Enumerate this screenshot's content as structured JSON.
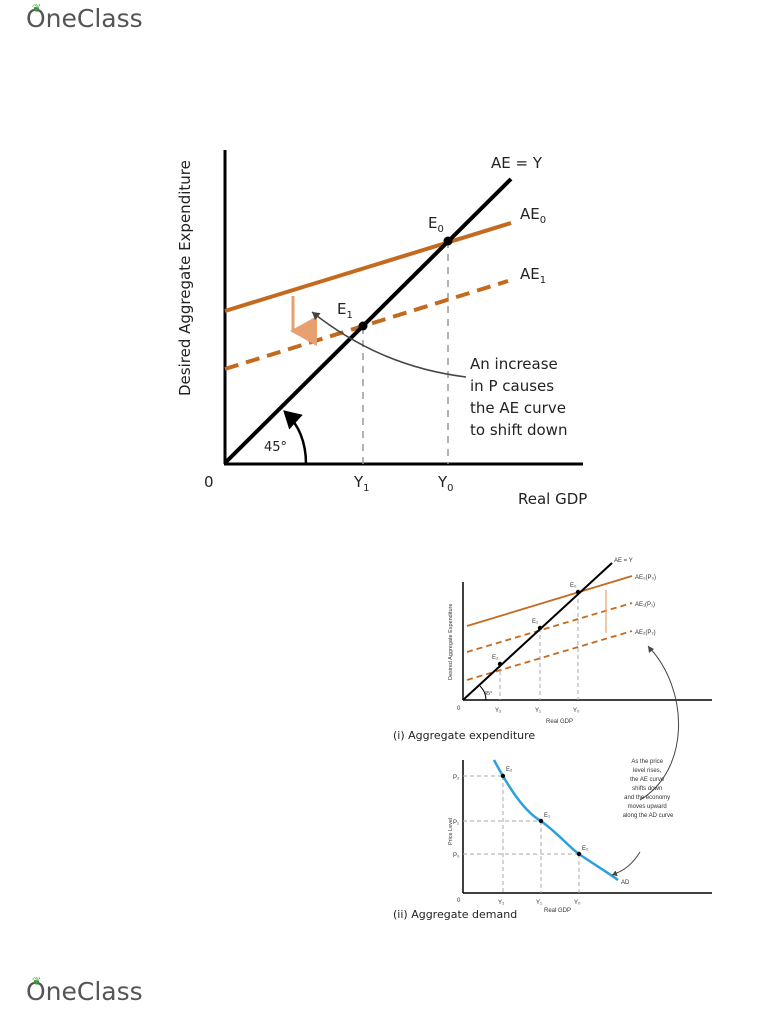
{
  "brand": {
    "name": "OneClass",
    "leaf_color": "#3a9a3a"
  },
  "colors": {
    "ae_line": "#c46a1e",
    "shift_arrow": "#e8a070",
    "ad_curve": "#2b9fe0",
    "axis": "#000000"
  },
  "figure_top": {
    "ylabel": "Desired Aggregate Expenditure",
    "xlabel": "Real GDP",
    "origin": "0",
    "line_ae_y": "AE = Y",
    "ae0": {
      "main": "AE",
      "sub": "0"
    },
    "ae1": {
      "main": "AE",
      "sub": "1"
    },
    "e0": {
      "main": "E",
      "sub": "0"
    },
    "e1": {
      "main": "E",
      "sub": "1"
    },
    "y1": {
      "main": "Y",
      "sub": "1"
    },
    "y0": {
      "main": "Y",
      "sub": "0"
    },
    "angle": "45°",
    "annotation": [
      "An increase",
      "in P causes",
      "the AE curve",
      "to shift down"
    ]
  },
  "figure_bottom": {
    "panel1_title": "(i) Aggregate expenditure",
    "panel2_title": "(ii) Aggregate demand",
    "ylabel1": "Desired Aggregate Expenditure",
    "ylabel2": "Price Level",
    "xlabel1": "Real GDP",
    "xlabel2": "Real GDP",
    "origin1": "0",
    "origin2": "0",
    "line_ae_y": "AE = Y",
    "ae_labels": [
      "AE₀(P₀)",
      "AE₁(P₁)",
      "AE₂(P₂)"
    ],
    "e_labels": [
      "E₀",
      "E₁",
      "E₂"
    ],
    "e_labels_ad": [
      "E₂",
      "E₁",
      "E₀"
    ],
    "y_labels": [
      "Y₂",
      "Y₁",
      "Y₀"
    ],
    "y_labels_ad": [
      "Y₂",
      "Y₁",
      "Y₀"
    ],
    "p_labels": [
      "P₂",
      "P₁",
      "P₀"
    ],
    "angle": "45°",
    "ad_label": "AD",
    "annotation": [
      "As the price",
      "level rises,",
      "the AE curve",
      "shifts down",
      "and the economy",
      "moves upward",
      "along the AD curve"
    ]
  }
}
